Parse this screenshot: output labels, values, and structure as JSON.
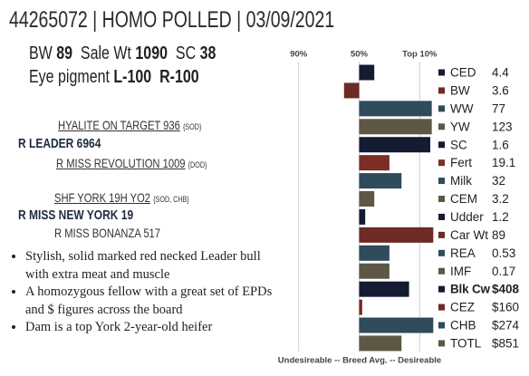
{
  "header": {
    "title": "44265072 | HOMO POLLED | 03/09/2021"
  },
  "stats": {
    "line1": [
      {
        "label": "BW",
        "value": 89
      },
      {
        "label": "Sale Wt",
        "value": 1090
      },
      {
        "label": "SC",
        "value": 38
      }
    ],
    "line2": {
      "label": "Eye pigment",
      "values": [
        "L-100",
        "R-100"
      ]
    }
  },
  "pedigree": {
    "sire_sire": {
      "name": "HYALITE ON TARGET 936",
      "note": "{SOD}"
    },
    "sire": {
      "name": "R LEADER 6964"
    },
    "sire_dam": {
      "name": "R MISS REVOLUTION 1009",
      "note": "{DOD}"
    },
    "dam_sire": {
      "name": "SHF YORK 19H YO2",
      "note": "{SOD, CHB}"
    },
    "dam": {
      "name": "R MISS NEW YORK 19"
    },
    "dam_dam": {
      "name": "R MISS BONANZA 517"
    }
  },
  "bullets": [
    "Stylish, solid marked red necked Leader bull with extra meat and muscle",
    "A homozygous fellow with a great set of EPDs and $ figures across the board",
    "Dam is a top York 2-year-old heifer"
  ],
  "chart_data": {
    "type": "bar",
    "orientation": "horizontal",
    "categories": [
      "CED",
      "BW",
      "WW",
      "YW",
      "SC",
      "Fert",
      "Milk",
      "CEM",
      "Udder",
      "Car Wt",
      "REA",
      "IMF",
      "Blk Cw",
      "CEZ",
      "CHB",
      "TOTL"
    ],
    "epds": [
      "4.4",
      "3.6",
      "77",
      "123",
      "1.6",
      "19.1",
      "32",
      "3.2",
      "1.2",
      "89",
      "0.53",
      "0.17",
      "$408",
      "$160",
      "$274",
      "$851"
    ],
    "values": [
      40,
      60,
      2,
      2,
      3,
      30,
      22,
      40,
      46,
      1,
      30,
      30,
      17,
      48,
      1,
      22
    ],
    "colors": [
      "#151b33",
      "#6e2a24",
      "#2f4b5c",
      "#5e5746",
      "#151b33",
      "#7a2e26",
      "#2f4b5c",
      "#5e5746",
      "#151b33",
      "#6e2a24",
      "#2f4b5c",
      "#5e5746",
      "#151b33",
      "#6e2a24",
      "#2f4b5c",
      "#5e5746"
    ],
    "bold_category": "Blk Cw",
    "base": 50,
    "xlim": [
      100,
      0
    ],
    "xticks": [
      {
        "value": 90,
        "label": "90%"
      },
      {
        "value": 50,
        "label": "50%"
      },
      {
        "value": 10,
        "label": "Top 10%"
      }
    ],
    "grid": true,
    "xlabel": "Undesireable -- Breed Avg. -- Desireable"
  }
}
